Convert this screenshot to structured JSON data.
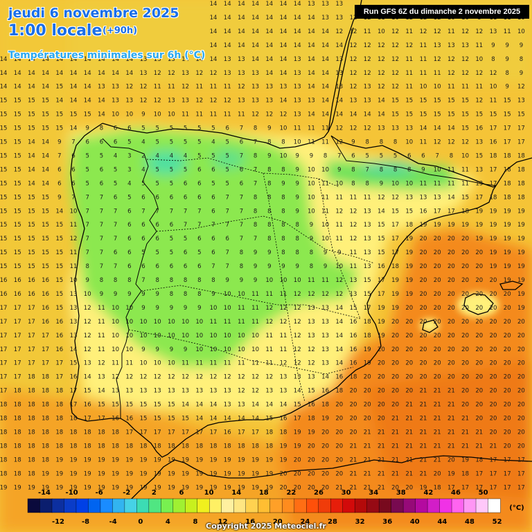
{
  "header": {
    "date": "jeudi 6 novembre 2025",
    "time": "1:00 locale",
    "lead": "(+90h)",
    "field": "Températures minimales sur 6h (°C)"
  },
  "run": "Run GFS 6Z du dimanche 2 novembre 2025",
  "copyright": "Copyright 2025 Meteociel.fr",
  "legend": {
    "unit": "(°C)",
    "top_labels": [
      "-14",
      "-10",
      "-6",
      "-2",
      "2",
      "6",
      "10",
      "14",
      "18",
      "22",
      "26",
      "30",
      "34",
      "38",
      "42",
      "46",
      "50"
    ],
    "bottom_labels": [
      "-12",
      "-8",
      "-4",
      "0",
      "4",
      "8",
      "12",
      "16",
      "20",
      "24",
      "28",
      "32",
      "36",
      "40",
      "44",
      "48",
      "52"
    ],
    "colors": [
      "#0a0a3c",
      "#0b1e6e",
      "#0c2fa0",
      "#0a3cc8",
      "#0040e6",
      "#0064f0",
      "#1a8cff",
      "#32b4f0",
      "#46d2e6",
      "#3cdcb4",
      "#50e682",
      "#78f050",
      "#a0f032",
      "#c8f01e",
      "#f0f01e",
      "#fff064",
      "#fff0a0",
      "#ffe682",
      "#ffd250",
      "#ffbe32",
      "#ffa028",
      "#ff8c1e",
      "#ff6e14",
      "#ff500a",
      "#f03c0a",
      "#e61e0a",
      "#d20a0a",
      "#b40a0a",
      "#960a14",
      "#780a1e",
      "#780a50",
      "#960a78",
      "#b40aa0",
      "#d21ec8",
      "#f032e6",
      "#ff64f0",
      "#ff96f5",
      "#ffc8fa",
      "#ffffff"
    ]
  },
  "grid": {
    "rows": [
      "13 13 13 13 13 13 13 13 13 13 13 13 13 13 14 14 14 14 14 14 14 14 13 13 13 13 13 13 13 13 13 13 13 13 13 13 13 13",
      "13 13 13 13 13 13 13 13 13 13 13 13 13 13 14 14 14 14 14 14 14 14 14 13 13 12 12 11 10 12 12 12 10 10 8 11 11 10",
      "14 14 14 14 14 14 14 14 14 14 13 13 14 14 14 14 14 14 14 14 14 14 14 14 12 12 11 10 12 11 12 12 11 12 12 13 11 10",
      "14 14 14 14 14 14 14 14 14 14 13 13 13 14 14 14 14 14 14 14 14 14 14 14 14 12 12 12 12 12 11 13 13 13 11 9 9 9",
      "14 14 14 14 14 14 14 14 14 14 13 13 13 14 14 14 13 13 14 14 14 13 14 14 13 12 12 12 12 11 11 12 12 12 10 8 9 8",
      "14 14 14 14 14 14 14 14 14 14 13 12 12 13 12 12 13 13 13 14 14 13 14 14 13 12 12 12 12 11 11 11 12 12 12 12 8 9",
      "14 14 14 14 15 14 14 13 13 12 12 11 11 12 11 11 11 12 13 13 13 13 14 14 13 12 13 12 12 11 10 10 11 11 11 10 9 12",
      "15 15 15 15 14 14 14 14 13 13 12 12 13 13 12 12 12 13 13 13 14 13 13 14 14 13 13 14 15 15 15 15 15 15 12 11 15 13",
      "15 15 15 15 15 15 15 14 10 10 9 10 10 11 11 11 11 11 12 12 12 13 14 14 14 14 14 14 15 15 15 15 15 15 15 15 15 15",
      "15 15 15 15 15 14 9 8 6 6 5 5 5 5 5 5 6 7 8 9 10 11 11 11 12 12 12 13 13 13 14 14 14 15 16 17 17 17",
      "15 15 14 14 9 7 6 6 6 5 4 5 5 5 5 4 5 6 7 8 8 10 11 11 12 9 8 8 8 10 11 12 12 12 13 16 17 17",
      "15 15 14 14 7 6 5 5 4 3 2 4 4 4 5 5 5 7 8 9 10 9 9 8 7 6 5 5 5 6 6 7 8 10 15 18 18 18",
      "15 15 14 14 6 6 5 6 5 3 4 5 5 5 6 6 5 6 7 8 8 9 10 10 9 8 7 8 8 8 9 10 11 11 13 17 18 18",
      "15 15 14 14 6 6 5 6 5 4 5 5 5 6 6 5 5 6 7 8 9 9 10 11 10 8 8 9 10 10 11 11 11 11 13 17 18 18",
      "15 15 15 15 9 7 7 7 6 5 6 6 6 6 6 6 7 7 8 8 8 9 10 11 11 11 11 12 12 13 13 13 14 15 17 18 18 18",
      "15 15 15 15 14 10 7 7 7 6 7 7 7 7 7 6 7 7 8 8 8 9 10 11 12 12 13 14 15 15 16 17 17 18 19 19 19 19",
      "15 15 15 15 15 11 7 7 7 6 6 6 6 7 7 7 7 7 8 8 8 8 9 10 11 12 13 15 17 18 19 19 19 19 19 19 19 19",
      "15 15 15 15 15 12 7 7 7 6 6 6 5 5 6 6 6 7 7 8 8 8 9 10 11 12 13 15 17 19 20 20 20 20 19 19 19 19",
      "15 15 15 15 15 11 7 7 6 6 5 5 5 6 5 6 7 8 9 9 8 8 8 9 9 11 13 15 17 19 20 20 20 20 20 19 19 19",
      "15 15 15 15 15 11 8 7 7 6 6 6 6 6 6 7 7 8 9 9 9 9 8 9 10 11 13 16 18 19 20 20 20 20 20 19 19 19",
      "16 16 16 16 15 10 9 8 8 8 7 8 8 8 8 8 9 9 9 10 10 10 11 11 12 13 15 17 19 19 20 20 20 20 20 20 19 19",
      "16 16 16 16 15 13 10 9 9 9 9 9 8 8 8 9 10 10 11 11 11 12 12 12 12 13 15 17 19 19 20 20 20 20 20 20 20 19",
      "17 17 17 16 15 13 12 11 10 10 9 9 9 9 9 10 10 11 11 12 12 12 13 13 14 15 17 19 19 20 20 20 20 20 20 20 20 19",
      "17 17 17 16 16 13 12 11 10 10 10 10 10 10 10 11 11 11 11 12 12 12 13 13 14 16 18 19 20 20 20 20 20 20 20 20 20 20",
      "17 17 17 17 16 13 12 11 10 10 10 10 10 10 10 10 10 10 10 11 11 12 13 13 14 16 18 19 20 20 20 20 20 20 20 20 20 20",
      "17 17 17 17 16 14 12 11 10 10 9 9 9 9 10 10 10 10 10 11 11 12 12 13 14 16 19 20 20 20 20 20 20 20 20 20 20 20",
      "17 17 17 17 17 15 13 12 11 11 10 10 10 11 11 11 11 11 11 11 12 12 12 13 14 16 19 20 20 20 20 20 20 20 20 20 20 20",
      "17 17 18 18 17 16 14 13 12 12 12 12 12 12 12 12 12 12 12 12 13 13 13 14 16 18 20 20 20 20 20 20 20 20 20 20 20 20",
      "17 18 18 18 18 17 15 14 13 13 13 13 13 13 13 13 13 12 12 13 13 14 15 16 18 20 20 20 20 20 21 21 21 20 20 20 20 20",
      "18 18 18 18 18 17 16 15 15 15 15 15 15 14 14 14 13 13 14 14 14 15 16 18 20 20 20 20 20 21 21 21 21 20 20 20 20 20",
      "18 18 18 18 18 18 17 17 16 16 15 15 15 15 14 14 14 14 14 15 16 17 18 19 20 20 20 20 21 21 21 21 21 21 20 20 20 20",
      "18 18 18 18 18 18 18 18 18 17 17 17 17 17 17 17 16 17 17 18 18 19 19 20 20 20 21 21 21 21 21 21 21 21 21 20 20 20",
      "18 18 18 18 18 18 18 18 18 18 18 18 18 18 18 18 18 18 18 18 19 19 20 20 20 21 21 21 21 21 21 21 21 21 21 21 20 20",
      "18 18 18 18 19 19 19 19 19 19 19 19 19 19 19 19 19 19 19 19 19 20 20 20 20 21 21 21 21 21 21 21 20 19 18 17 17 17",
      "18 18 18 19 19 19 19 19 19 19 19 19 19 19 19 19 19 19 19 19 20 20 20 20 20 21 21 21 21 21 21 20 19 18 17 17 17 17",
      "19 19 19 19 19 19 19 19 19 19 19 19 19 19 19 19 19 19 19 19 20 20 20 20 21 21 21 21 20 20 19 18 17 17 17 17 17 17",
      "19 19 19 19 19 19 19 19 19 19 19 19 19 19 19 19 19 19 19 20 20 20 20 20 20 20 20 20 19 18 17 17 17 16 17 17 17 17",
      "20 20 20 20 20 20 20 20 20 20 20 20 20 20 20 20 20 20 20 20 20 20 20 20 20 20 20 20 20 20 20 20 20 20 20 20 20 20"
    ]
  }
}
